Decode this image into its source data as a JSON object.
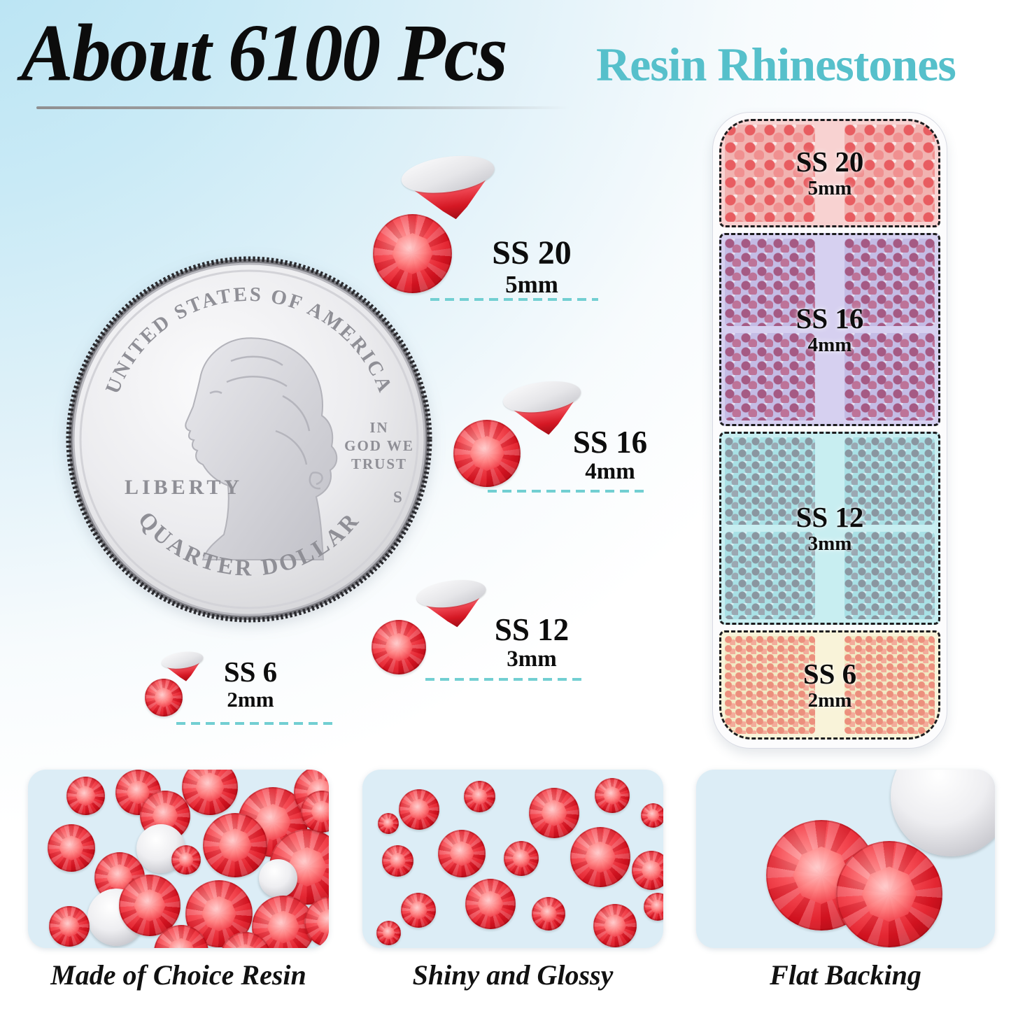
{
  "header": {
    "title": "About 6100 Pcs",
    "subtitle": "Resin Rhinestones"
  },
  "coin": {
    "top_text": "UNITED STATES OF AMERICA",
    "left_text": "LIBERTY",
    "motto_line1": "IN",
    "motto_line2": "GOD WE",
    "motto_line3": "TRUST",
    "mint_mark": "S",
    "bottom_text": "QUARTER DOLLAR"
  },
  "sizes": [
    {
      "label": "SS 20",
      "size": "5mm"
    },
    {
      "label": "SS 16",
      "size": "4mm"
    },
    {
      "label": "SS 12",
      "size": "3mm"
    },
    {
      "label": "SS 6",
      "size": "2mm"
    }
  ],
  "organizer": {
    "sections": [
      {
        "label": "SS 20",
        "size": "5mm"
      },
      {
        "label": "SS 16",
        "size": "4mm"
      },
      {
        "label": "SS 12",
        "size": "3mm"
      },
      {
        "label": "SS 6",
        "size": "2mm"
      }
    ]
  },
  "features": [
    {
      "caption": "Made of Choice Resin"
    },
    {
      "caption": "Shiny and Glossy"
    },
    {
      "caption": "Flat Backing"
    }
  ],
  "colors": {
    "accent_teal": "#56c0cb",
    "stone_red": "#e01724",
    "dash_teal": "#72cfd2"
  }
}
